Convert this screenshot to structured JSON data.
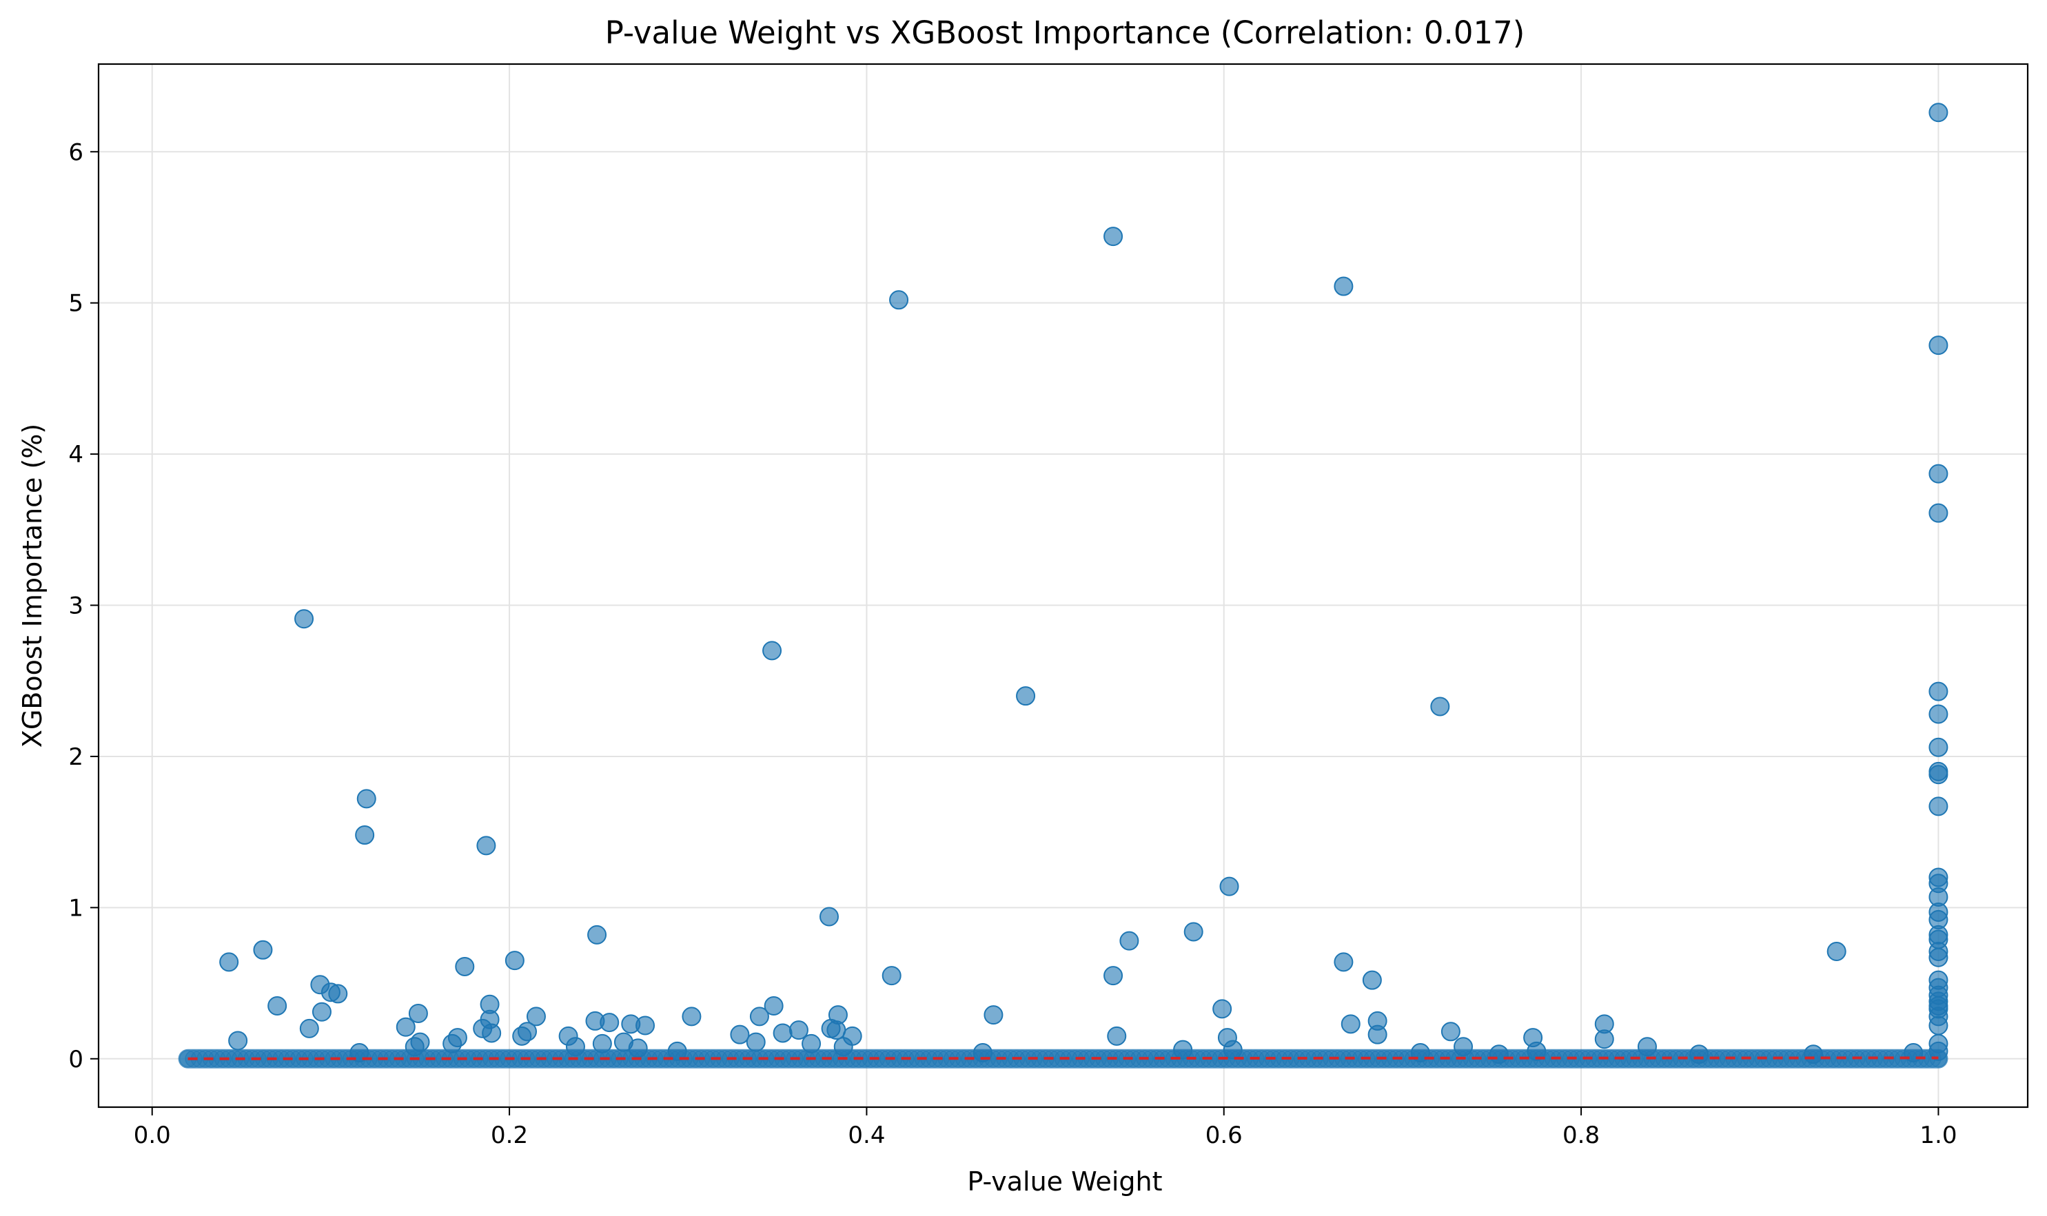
{
  "chart_data": {
    "type": "scatter",
    "title": "P-value Weight vs XGBoost Importance (Correlation: 0.017)",
    "xlabel": "P-value Weight",
    "ylabel": "XGBoost Importance (%)",
    "xlim": [
      -0.03,
      1.05
    ],
    "ylim": [
      -0.32,
      6.58
    ],
    "xticks": [
      0.0,
      0.2,
      0.4,
      0.6,
      0.8,
      1.0
    ],
    "xtick_labels": [
      "0.0",
      "0.2",
      "0.4",
      "0.6",
      "0.8",
      "1.0"
    ],
    "yticks": [
      0,
      1,
      2,
      3,
      4,
      5,
      6
    ],
    "ytick_labels": [
      "0",
      "1",
      "2",
      "3",
      "4",
      "5",
      "6"
    ],
    "grid": true,
    "point_color": "#1f77b4",
    "trend_color": "#d62728",
    "trend_line": {
      "style": "dashed",
      "x": [
        0.02,
        1.0
      ],
      "y": [
        0.0,
        0.006
      ]
    },
    "baseline_band": {
      "x_start": 0.02,
      "x_end": 1.0,
      "y": 0.0
    },
    "series": [
      {
        "points": [
          [
            1.0,
            6.26
          ],
          [
            0.538,
            5.44
          ],
          [
            0.667,
            5.11
          ],
          [
            0.418,
            5.02
          ],
          [
            1.0,
            4.72
          ],
          [
            1.0,
            3.87
          ],
          [
            1.0,
            3.61
          ],
          [
            0.085,
            2.91
          ],
          [
            0.347,
            2.7
          ],
          [
            0.489,
            2.4
          ],
          [
            0.721,
            2.33
          ],
          [
            1.0,
            2.43
          ],
          [
            1.0,
            2.28
          ],
          [
            1.0,
            2.06
          ],
          [
            1.0,
            1.9
          ],
          [
            1.0,
            1.88
          ],
          [
            0.12,
            1.72
          ],
          [
            1.0,
            1.67
          ],
          [
            0.119,
            1.48
          ],
          [
            0.187,
            1.41
          ],
          [
            1.0,
            1.2
          ],
          [
            1.0,
            1.16
          ],
          [
            0.603,
            1.14
          ],
          [
            1.0,
            1.07
          ],
          [
            1.0,
            0.97
          ],
          [
            0.379,
            0.94
          ],
          [
            1.0,
            0.92
          ],
          [
            0.583,
            0.84
          ],
          [
            0.249,
            0.82
          ],
          [
            1.0,
            0.82
          ],
          [
            1.0,
            0.79
          ],
          [
            0.547,
            0.78
          ],
          [
            0.062,
            0.72
          ],
          [
            0.943,
            0.71
          ],
          [
            1.0,
            0.71
          ],
          [
            1.0,
            0.67
          ],
          [
            0.203,
            0.65
          ],
          [
            0.043,
            0.64
          ],
          [
            0.667,
            0.64
          ],
          [
            0.175,
            0.61
          ],
          [
            0.414,
            0.55
          ],
          [
            0.538,
            0.55
          ],
          [
            0.683,
            0.52
          ],
          [
            1.0,
            0.52
          ],
          [
            0.094,
            0.49
          ],
          [
            1.0,
            0.47
          ],
          [
            0.1,
            0.44
          ],
          [
            0.104,
            0.43
          ],
          [
            1.0,
            0.42
          ],
          [
            1.0,
            0.38
          ],
          [
            0.189,
            0.36
          ],
          [
            0.07,
            0.35
          ],
          [
            0.348,
            0.35
          ],
          [
            1.0,
            0.35
          ],
          [
            0.599,
            0.33
          ],
          [
            1.0,
            0.33
          ],
          [
            0.095,
            0.31
          ],
          [
            0.149,
            0.3
          ],
          [
            0.384,
            0.29
          ],
          [
            0.471,
            0.29
          ],
          [
            0.215,
            0.28
          ],
          [
            0.302,
            0.28
          ],
          [
            0.34,
            0.28
          ],
          [
            1.0,
            0.28
          ],
          [
            0.189,
            0.26
          ],
          [
            0.248,
            0.25
          ],
          [
            0.686,
            0.25
          ],
          [
            0.256,
            0.24
          ],
          [
            0.268,
            0.23
          ],
          [
            0.671,
            0.23
          ],
          [
            0.813,
            0.23
          ],
          [
            0.276,
            0.22
          ],
          [
            1.0,
            0.22
          ],
          [
            0.142,
            0.21
          ],
          [
            0.185,
            0.2
          ],
          [
            0.088,
            0.2
          ],
          [
            0.38,
            0.2
          ],
          [
            0.383,
            0.19
          ],
          [
            0.362,
            0.19
          ],
          [
            0.727,
            0.18
          ],
          [
            0.21,
            0.18
          ],
          [
            0.19,
            0.17
          ],
          [
            0.353,
            0.17
          ],
          [
            0.329,
            0.16
          ],
          [
            0.686,
            0.16
          ],
          [
            0.207,
            0.15
          ],
          [
            0.233,
            0.15
          ],
          [
            0.54,
            0.15
          ],
          [
            0.392,
            0.15
          ],
          [
            0.773,
            0.14
          ],
          [
            0.171,
            0.14
          ],
          [
            0.602,
            0.14
          ],
          [
            0.813,
            0.13
          ],
          [
            0.048,
            0.12
          ],
          [
            0.15,
            0.11
          ],
          [
            0.264,
            0.11
          ],
          [
            0.338,
            0.11
          ],
          [
            0.252,
            0.1
          ],
          [
            0.369,
            0.1
          ],
          [
            0.168,
            0.1
          ],
          [
            0.237,
            0.08
          ],
          [
            0.387,
            0.08
          ],
          [
            0.147,
            0.08
          ],
          [
            0.734,
            0.08
          ],
          [
            0.837,
            0.08
          ],
          [
            0.272,
            0.07
          ],
          [
            0.577,
            0.06
          ],
          [
            0.605,
            0.06
          ],
          [
            0.294,
            0.05
          ],
          [
            0.775,
            0.05
          ],
          [
            0.465,
            0.04
          ],
          [
            0.116,
            0.04
          ],
          [
            0.71,
            0.04
          ],
          [
            0.754,
            0.03
          ],
          [
            0.866,
            0.03
          ],
          [
            0.93,
            0.03
          ],
          [
            0.986,
            0.04
          ],
          [
            1.0,
            0.1
          ],
          [
            1.0,
            0.05
          ]
        ]
      }
    ]
  }
}
